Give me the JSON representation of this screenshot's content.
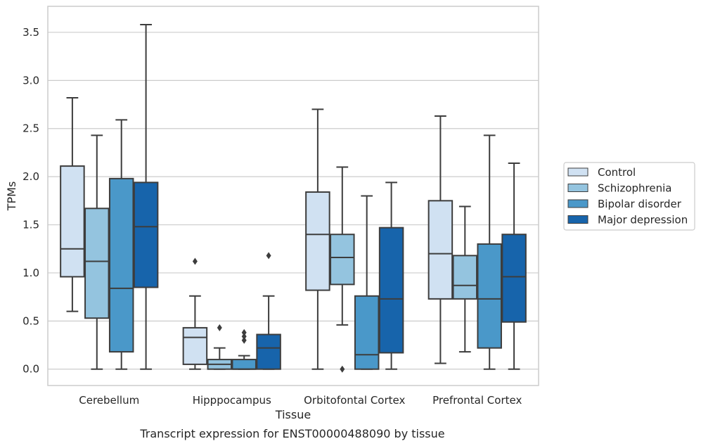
{
  "chart_data": {
    "type": "box",
    "xlabel": "Tissue",
    "ylabel": "TPMs",
    "caption": "Transcript expression for ENST00000488090 by tissue",
    "ylim": [
      -0.17,
      3.77
    ],
    "yticks": [
      "0.0",
      "0.5",
      "1.0",
      "1.5",
      "2.0",
      "2.5",
      "3.0",
      "3.5"
    ],
    "grid": true,
    "legend_position": "right",
    "categories": [
      "Cerebellum",
      "Hipppocampus",
      "Orbitofontal Cortex",
      "Prefrontal Cortex"
    ],
    "series": [
      {
        "name": "Control",
        "color": "#d0e1f2",
        "boxes": [
          {
            "whisker_low": 0.6,
            "q1": 0.96,
            "median": 1.25,
            "q3": 2.11,
            "whisker_high": 2.82,
            "outliers": []
          },
          {
            "whisker_low": 0.0,
            "q1": 0.05,
            "median": 0.33,
            "q3": 0.43,
            "whisker_high": 0.76,
            "outliers": [
              1.12
            ]
          },
          {
            "whisker_low": 0.0,
            "q1": 0.82,
            "median": 1.4,
            "q3": 1.84,
            "whisker_high": 2.7,
            "outliers": []
          },
          {
            "whisker_low": 0.06,
            "q1": 0.73,
            "median": 1.2,
            "q3": 1.75,
            "whisker_high": 2.63,
            "outliers": []
          }
        ]
      },
      {
        "name": "Schizophrenia",
        "color": "#94c4df",
        "boxes": [
          {
            "whisker_low": 0.0,
            "q1": 0.53,
            "median": 1.12,
            "q3": 1.67,
            "whisker_high": 2.43,
            "outliers": []
          },
          {
            "whisker_low": 0.0,
            "q1": 0.0,
            "median": 0.05,
            "q3": 0.1,
            "whisker_high": 0.22,
            "outliers": [
              0.43
            ]
          },
          {
            "whisker_low": 0.46,
            "q1": 0.88,
            "median": 1.16,
            "q3": 1.4,
            "whisker_high": 2.1,
            "outliers": [
              0.0
            ]
          },
          {
            "whisker_low": 0.18,
            "q1": 0.73,
            "median": 0.87,
            "q3": 1.18,
            "whisker_high": 1.69,
            "outliers": []
          }
        ]
      },
      {
        "name": "Bipolar disorder",
        "color": "#4a98c9",
        "boxes": [
          {
            "whisker_low": 0.0,
            "q1": 0.18,
            "median": 0.84,
            "q3": 1.98,
            "whisker_high": 2.59,
            "outliers": []
          },
          {
            "whisker_low": 0.0,
            "q1": 0.0,
            "median": 0.0,
            "q3": 0.1,
            "whisker_high": 0.14,
            "outliers": [
              0.3,
              0.34,
              0.38
            ]
          },
          {
            "whisker_low": 0.0,
            "q1": 0.0,
            "median": 0.15,
            "q3": 0.76,
            "whisker_high": 1.8,
            "outliers": []
          },
          {
            "whisker_low": 0.0,
            "q1": 0.22,
            "median": 0.73,
            "q3": 1.3,
            "whisker_high": 2.43,
            "outliers": []
          }
        ]
      },
      {
        "name": "Major depression",
        "color": "#1764ab",
        "boxes": [
          {
            "whisker_low": 0.0,
            "q1": 0.85,
            "median": 1.48,
            "q3": 1.94,
            "whisker_high": 3.58,
            "outliers": []
          },
          {
            "whisker_low": 0.0,
            "q1": 0.0,
            "median": 0.22,
            "q3": 0.36,
            "whisker_high": 0.76,
            "outliers": [
              1.18
            ]
          },
          {
            "whisker_low": 0.0,
            "q1": 0.17,
            "median": 0.73,
            "q3": 1.47,
            "whisker_high": 1.94,
            "outliers": []
          },
          {
            "whisker_low": 0.0,
            "q1": 0.49,
            "median": 0.96,
            "q3": 1.4,
            "whisker_high": 2.14,
            "outliers": []
          }
        ]
      }
    ]
  }
}
